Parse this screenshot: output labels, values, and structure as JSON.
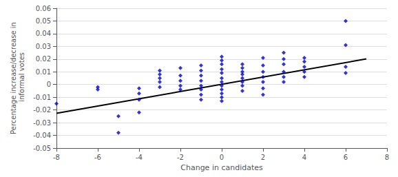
{
  "chart_data": {
    "type": "scatter",
    "xlabel": "Change in candidates",
    "ylabel": "Percentage increase/decrease in\n informal votes",
    "xlim": [
      -8,
      8
    ],
    "ylim": [
      -0.05,
      0.06
    ],
    "xticks": [
      -8,
      -6,
      -4,
      -2,
      0,
      2,
      4,
      6,
      8
    ],
    "yticks": [
      -0.05,
      -0.04,
      -0.03,
      -0.02,
      -0.01,
      0,
      0.01,
      0.02,
      0.03,
      0.04,
      0.05,
      0.06
    ],
    "grid": true,
    "series": [
      {
        "type": "scatter",
        "color": "#0000CC",
        "marker": "diamond",
        "x": [
          -8,
          -6,
          -6,
          -5,
          -5,
          -4,
          -4,
          -4,
          -4,
          -3,
          -3,
          -3,
          -3,
          -3,
          -2,
          -2,
          -2,
          -2,
          -2,
          -1,
          -1,
          -1,
          -1,
          -1,
          -1,
          -1,
          -1,
          0,
          0,
          0,
          0,
          0,
          0,
          0,
          0,
          0,
          0,
          0,
          0,
          1,
          1,
          1,
          1,
          1,
          1,
          1,
          1,
          2,
          2,
          2,
          2,
          2,
          2,
          2,
          3,
          3,
          3,
          3,
          3,
          3,
          4,
          4,
          4,
          4,
          4,
          6,
          6,
          6,
          6
        ],
        "values": [
          -0.015,
          -0.002,
          -0.004,
          -0.025,
          -0.038,
          -0.003,
          -0.007,
          -0.012,
          -0.022,
          -0.002,
          0.002,
          0.005,
          0.008,
          0.011,
          -0.004,
          -0.001,
          0.003,
          0.007,
          0.013,
          -0.012,
          -0.008,
          -0.004,
          -0.001,
          0.003,
          0.007,
          0.011,
          0.015,
          -0.013,
          -0.01,
          -0.007,
          -0.004,
          -0.001,
          0.002,
          0.005,
          0.009,
          0.012,
          0.016,
          0.019,
          0.022,
          -0.005,
          -0.001,
          0.002,
          0.005,
          0.008,
          0.01,
          0.013,
          0.016,
          -0.008,
          -0.003,
          0.002,
          0.006,
          0.01,
          0.015,
          0.021,
          0.002,
          0.006,
          0.01,
          0.016,
          0.02,
          0.025,
          0.006,
          0.01,
          0.014,
          0.018,
          0.021,
          0.009,
          0.014,
          0.031,
          0.05
        ]
      },
      {
        "type": "line",
        "color": "black",
        "line_style": "solid",
        "x": [
          -8,
          7
        ],
        "values": [
          -0.0226,
          0.02015
        ]
      }
    ]
  }
}
